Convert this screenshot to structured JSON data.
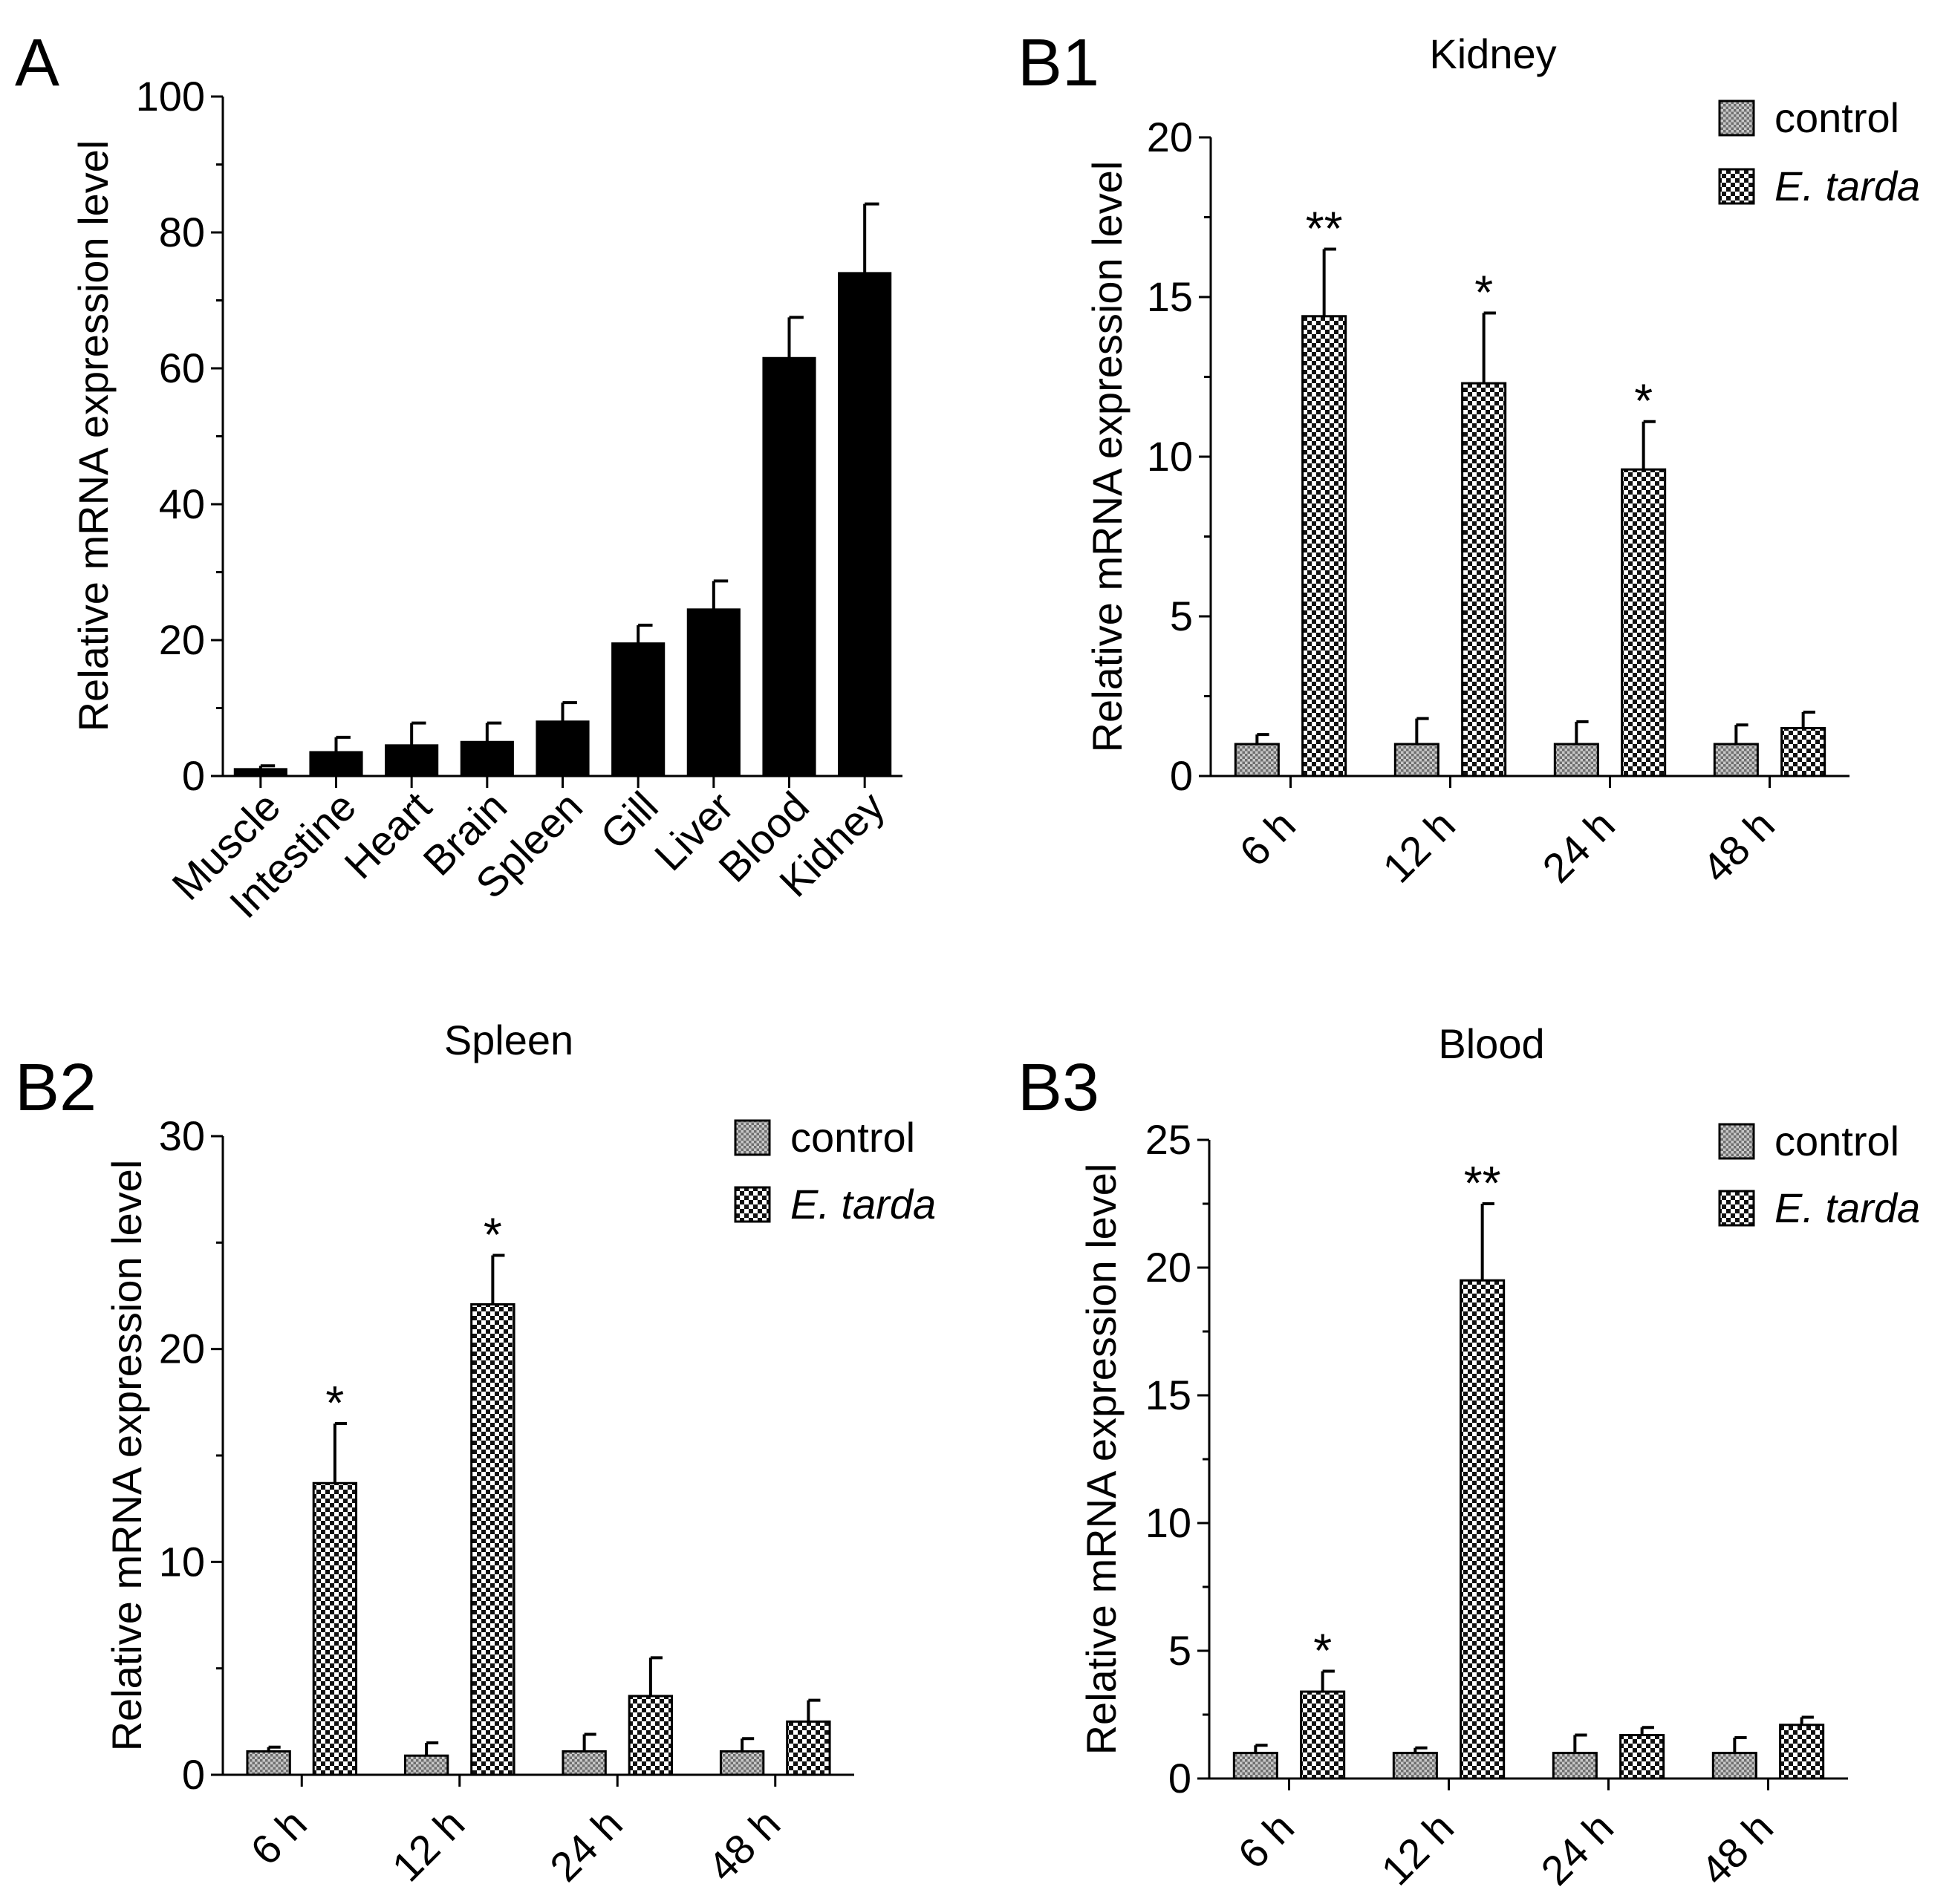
{
  "colors": {
    "ink": "#000000",
    "control_fill": "#9a9a9a",
    "treat_fill": "#4a4a4a",
    "background": "#ffffff"
  },
  "chart_data": [
    {
      "id": "A",
      "panel_label": "A",
      "type": "bar",
      "title": "",
      "xlabel": "",
      "ylabel": "Relative mRNA expression level",
      "ylim": [
        0,
        100
      ],
      "yticks": [
        "0",
        "20",
        "40",
        "60",
        "80",
        "100"
      ],
      "categories": [
        "Muscle",
        "Intestine",
        "Heart",
        "Brain",
        "Spleen",
        "Gill",
        "Liver",
        "Blood",
        "Kidney"
      ],
      "series": [
        {
          "name": "",
          "values": [
            1,
            3.5,
            4.5,
            5,
            8,
            19.5,
            24.5,
            61.5,
            74
          ],
          "errors": [
            0.5,
            2.2,
            3.3,
            2.8,
            2.8,
            2.7,
            4.2,
            6,
            10.2
          ]
        }
      ],
      "legend": null
    },
    {
      "id": "B1",
      "panel_label": "B1",
      "type": "bar",
      "title": "Kidney",
      "xlabel": "",
      "ylabel": "Relative mRNA expression level",
      "ylim": [
        0,
        20
      ],
      "yticks": [
        "0",
        "5",
        "10",
        "15",
        "20"
      ],
      "categories": [
        "6 h",
        "12 h",
        "24 h",
        "48 h"
      ],
      "series": [
        {
          "name": "control",
          "values": [
            1,
            1,
            1,
            1
          ],
          "errors": [
            0.3,
            0.8,
            0.7,
            0.6
          ]
        },
        {
          "name": "E. tarda",
          "values": [
            14.4,
            12.3,
            9.6,
            1.5
          ],
          "errors": [
            2.1,
            2.2,
            1.5,
            0.5
          ]
        }
      ],
      "significance": [
        "**",
        "*",
        "*",
        ""
      ],
      "legend": {
        "position": "top-right",
        "entries": [
          "control",
          "E. tarda"
        ]
      }
    },
    {
      "id": "B2",
      "panel_label": "B2",
      "type": "bar",
      "title": "Spleen",
      "xlabel": "",
      "ylabel": "Relative mRNA expression level",
      "ylim": [
        0,
        30
      ],
      "yticks": [
        "0",
        "10",
        "20",
        "30"
      ],
      "categories": [
        "6 h",
        "12 h",
        "24 h",
        "48 h"
      ],
      "series": [
        {
          "name": "control",
          "values": [
            1.1,
            0.9,
            1.1,
            1.1
          ],
          "errors": [
            0.2,
            0.6,
            0.8,
            0.6
          ]
        },
        {
          "name": "E. tarda",
          "values": [
            13.7,
            22.1,
            3.7,
            2.5
          ],
          "errors": [
            2.8,
            2.3,
            1.8,
            1
          ]
        }
      ],
      "significance": [
        "*",
        "*",
        "",
        ""
      ],
      "legend": {
        "position": "top-right",
        "entries": [
          "control",
          "E. tarda"
        ]
      }
    },
    {
      "id": "B3",
      "panel_label": "B3",
      "type": "bar",
      "title": "Blood",
      "xlabel": "",
      "ylabel": "Relative mRNA expression level",
      "ylim": [
        0,
        25
      ],
      "yticks": [
        "0",
        "5",
        "10",
        "15",
        "20",
        "25"
      ],
      "categories": [
        "6 h",
        "12 h",
        "24 h",
        "48 h"
      ],
      "series": [
        {
          "name": "control",
          "values": [
            1,
            1,
            1,
            1
          ],
          "errors": [
            0.3,
            0.2,
            0.7,
            0.6
          ]
        },
        {
          "name": "E. tarda",
          "values": [
            3.4,
            19.5,
            1.7,
            2.1
          ],
          "errors": [
            0.8,
            3,
            0.3,
            0.3
          ]
        }
      ],
      "significance": [
        "*",
        "**",
        "",
        ""
      ],
      "legend": {
        "position": "top-right",
        "entries": [
          "control",
          "E. tarda"
        ]
      }
    }
  ]
}
